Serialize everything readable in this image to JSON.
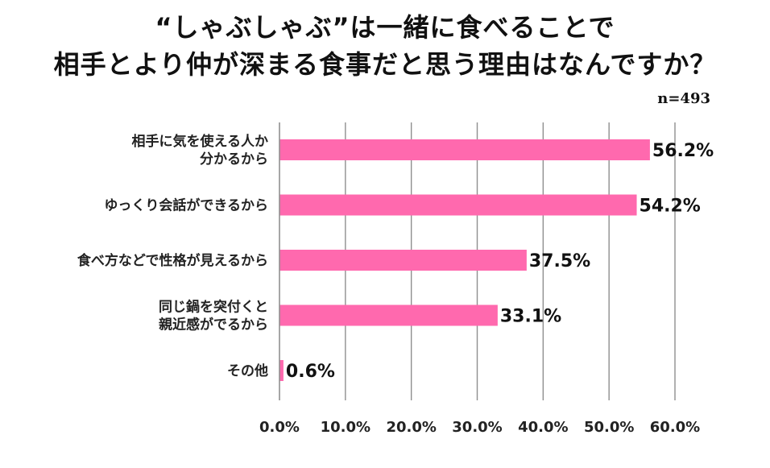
{
  "title_lines": [
    "“しゃぶしゃぶ”は一緒に食べることで",
    "相手とより仲が深まる食事だと思う理由はなんですか？"
  ],
  "sample_note": "n=493",
  "colors": {
    "bar": "#FF69AE",
    "grid": "#8f8f8f"
  },
  "chart_data": {
    "type": "bar",
    "orientation": "horizontal",
    "categories": [
      [
        "相手に気を使える人か",
        "分かるから"
      ],
      [
        "ゆっくり会話ができるから"
      ],
      [
        "食べ方などで性格が見えるから"
      ],
      [
        "同じ鍋を突付くと",
        "親近感がでるから"
      ],
      [
        "その他"
      ]
    ],
    "values": [
      56.2,
      54.2,
      37.5,
      33.1,
      0.6
    ],
    "value_labels": [
      "56.2%",
      "54.2%",
      "37.5%",
      "33.1%",
      "0.6%"
    ],
    "xlim": [
      0,
      60
    ],
    "xticks": [
      0,
      10,
      20,
      30,
      40,
      50,
      60
    ],
    "xtick_labels": [
      "0.0%",
      "10.0%",
      "20.0%",
      "30.0%",
      "40.0%",
      "50.0%",
      "60.0%"
    ],
    "grid": true,
    "legend": "none"
  }
}
